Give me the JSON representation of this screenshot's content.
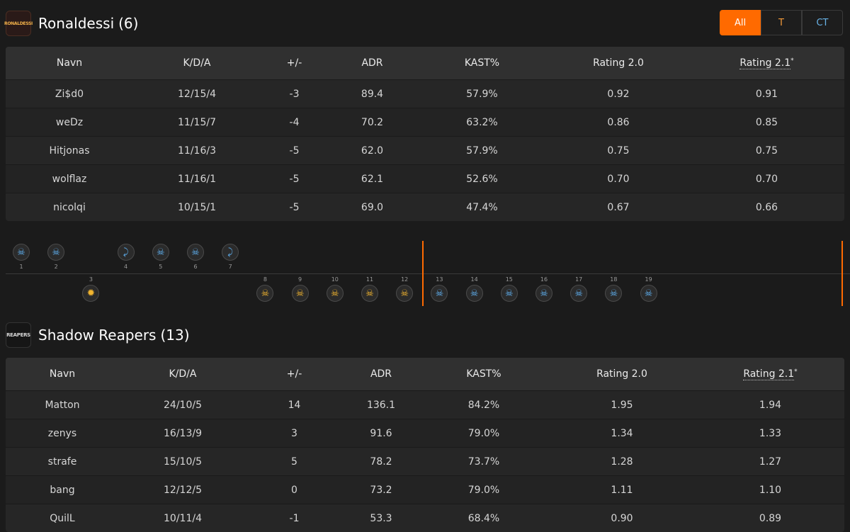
{
  "team_a": {
    "name": "Ronaldessi",
    "count": "(6)",
    "logo_text": "RONALDESSI"
  },
  "team_b": {
    "name": "Shadow Reapers",
    "count": "(13)",
    "logo_text": "REAPERS"
  },
  "filter": {
    "all": "All",
    "t": "T",
    "ct": "CT"
  },
  "columns": [
    "Navn",
    "K/D/A",
    "+/-",
    "ADR",
    "KAST%",
    "Rating 2.0",
    "Rating 2.1",
    "*"
  ],
  "team_a_players": [
    [
      "Zi$d0",
      "12/15/4",
      "-3",
      "89.4",
      "57.9%",
      "0.92",
      "0.91"
    ],
    [
      "weDz",
      "11/15/7",
      "-4",
      "70.2",
      "63.2%",
      "0.86",
      "0.85"
    ],
    [
      "Hitjonas",
      "11/16/3",
      "-5",
      "62.0",
      "57.9%",
      "0.75",
      "0.75"
    ],
    [
      "wolflaz",
      "11/16/1",
      "-5",
      "62.1",
      "52.6%",
      "0.70",
      "0.70"
    ],
    [
      "nicolqi",
      "10/15/1",
      "-5",
      "69.0",
      "47.4%",
      "0.67",
      "0.66"
    ]
  ],
  "team_b_players": [
    [
      "Matton",
      "24/10/5",
      "14",
      "136.1",
      "84.2%",
      "1.95",
      "1.94"
    ],
    [
      "zenys",
      "16/13/9",
      "3",
      "91.6",
      "79.0%",
      "1.34",
      "1.33"
    ],
    [
      "strafe",
      "15/10/5",
      "5",
      "78.2",
      "73.7%",
      "1.28",
      "1.27"
    ],
    [
      "bang",
      "12/12/5",
      "0",
      "73.2",
      "79.0%",
      "1.11",
      "1.10"
    ],
    [
      "QuilL",
      "10/11/4",
      "-1",
      "53.3",
      "68.4%",
      "0.90",
      "0.89"
    ]
  ],
  "rounds": [
    {
      "n": "1",
      "winner": "a",
      "side": "ct",
      "icon": "skull-icon"
    },
    {
      "n": "2",
      "winner": "a",
      "side": "ct",
      "icon": "skull-icon"
    },
    {
      "n": "3",
      "winner": "b",
      "side": "t",
      "icon": "bomb-explosion-icon"
    },
    {
      "n": "4",
      "winner": "a",
      "side": "ct",
      "icon": "defuse-icon"
    },
    {
      "n": "5",
      "winner": "a",
      "side": "ct",
      "icon": "skull-icon"
    },
    {
      "n": "6",
      "winner": "a",
      "side": "ct",
      "icon": "skull-icon"
    },
    {
      "n": "7",
      "winner": "a",
      "side": "ct",
      "icon": "defuse-icon"
    },
    {
      "n": "8",
      "winner": "b",
      "side": "t",
      "icon": "skull-icon"
    },
    {
      "n": "9",
      "winner": "b",
      "side": "t",
      "icon": "skull-icon"
    },
    {
      "n": "10",
      "winner": "b",
      "side": "t",
      "icon": "skull-icon"
    },
    {
      "n": "11",
      "winner": "b",
      "side": "t",
      "icon": "skull-icon"
    },
    {
      "n": "12",
      "winner": "b",
      "side": "t",
      "icon": "skull-icon"
    },
    {
      "n": "13",
      "winner": "b",
      "side": "ct",
      "icon": "skull-icon"
    },
    {
      "n": "14",
      "winner": "b",
      "side": "ct",
      "icon": "skull-icon"
    },
    {
      "n": "15",
      "winner": "b",
      "side": "ct",
      "icon": "skull-icon"
    },
    {
      "n": "16",
      "winner": "b",
      "side": "ct",
      "icon": "skull-icon"
    },
    {
      "n": "17",
      "winner": "b",
      "side": "ct",
      "icon": "skull-icon"
    },
    {
      "n": "18",
      "winner": "b",
      "side": "ct",
      "icon": "skull-icon"
    },
    {
      "n": "19",
      "winner": "b",
      "side": "ct",
      "icon": "skull-icon"
    }
  ],
  "colors": {
    "accent": "#ff6a00",
    "ct": "#5fb0f0",
    "t": "#f2b52f"
  }
}
